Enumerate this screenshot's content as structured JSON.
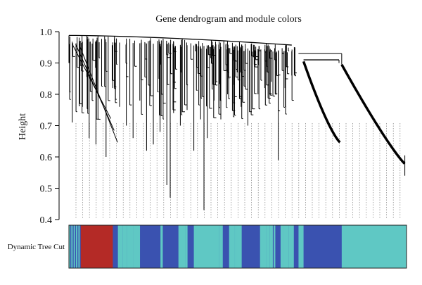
{
  "chart_data": {
    "type": "dendrogram",
    "title": "Gene dendrogram and module colors",
    "ylabel": "Height",
    "ylim": [
      0.4,
      1.0
    ],
    "yticks": [
      "0.4",
      "0.5",
      "0.6",
      "0.7",
      "0.8",
      "0.9",
      "1.0"
    ],
    "band_label": "Dynamic Tree Cut",
    "module_colors": {
      "turquoise": "#5fc8c4",
      "blue": "#3a52b0",
      "brown": "#b42a26"
    },
    "band_segments": [
      {
        "module": "turquoise",
        "start": 0.0,
        "end": 0.035
      },
      {
        "module": "brown",
        "start": 0.035,
        "end": 0.13
      },
      {
        "module": "blue",
        "start": 0.278,
        "end": 0.315
      },
      {
        "module": "blue",
        "start": 0.695,
        "end": 0.808
      },
      {
        "module": "turquoise",
        "start": 0.808,
        "end": 1.0
      }
    ],
    "leaf_min_heights": [
      {
        "x": 0.0,
        "h": 0.9
      },
      {
        "x": 0.01,
        "h": 0.71
      },
      {
        "x": 0.04,
        "h": 0.76
      },
      {
        "x": 0.06,
        "h": 0.66
      },
      {
        "x": 0.08,
        "h": 0.64
      },
      {
        "x": 0.11,
        "h": 0.6
      },
      {
        "x": 0.13,
        "h": 0.82
      },
      {
        "x": 0.15,
        "h": 0.76
      },
      {
        "x": 0.17,
        "h": 0.7
      },
      {
        "x": 0.19,
        "h": 0.66
      },
      {
        "x": 0.21,
        "h": 0.78
      },
      {
        "x": 0.23,
        "h": 0.62
      },
      {
        "x": 0.25,
        "h": 0.64
      },
      {
        "x": 0.27,
        "h": 0.68
      },
      {
        "x": 0.29,
        "h": 0.51
      },
      {
        "x": 0.31,
        "h": 0.74
      },
      {
        "x": 0.3,
        "h": 0.47
      },
      {
        "x": 0.33,
        "h": 0.7
      },
      {
        "x": 0.35,
        "h": 0.75
      },
      {
        "x": 0.37,
        "h": 0.62
      },
      {
        "x": 0.39,
        "h": 0.72
      },
      {
        "x": 0.41,
        "h": 0.66
      },
      {
        "x": 0.4,
        "h": 0.43
      },
      {
        "x": 0.43,
        "h": 0.78
      },
      {
        "x": 0.45,
        "h": 0.72
      },
      {
        "x": 0.47,
        "h": 0.8
      },
      {
        "x": 0.49,
        "h": 0.83
      },
      {
        "x": 0.51,
        "h": 0.76
      },
      {
        "x": 0.53,
        "h": 0.7
      },
      {
        "x": 0.56,
        "h": 0.8
      },
      {
        "x": 0.58,
        "h": 0.82
      },
      {
        "x": 0.6,
        "h": 0.84
      },
      {
        "x": 0.62,
        "h": 0.59
      },
      {
        "x": 0.64,
        "h": 0.82
      },
      {
        "x": 0.66,
        "h": 0.86
      }
    ]
  }
}
